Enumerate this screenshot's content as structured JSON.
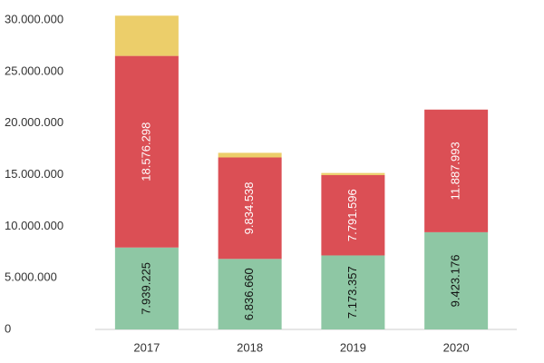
{
  "chart_data": {
    "type": "stacked_bar",
    "categories": [
      "2017",
      "2018",
      "2019",
      "2020"
    ],
    "series": [
      {
        "name": null,
        "color": "#8ec7a4",
        "label_color": "#111111",
        "values": [
          7939225,
          6836660,
          7173357,
          9423176
        ],
        "value_labels": [
          "7.939.225",
          "6.836.660",
          "7.173.357",
          "9.423.176"
        ]
      },
      {
        "name": null,
        "color": "#db4f55",
        "label_color": "#ffffff",
        "values": [
          18576298,
          9834538,
          7791596,
          11887993
        ],
        "value_labels": [
          "18.576.298",
          "9.834.538",
          "7.791.596",
          "11.887.993"
        ]
      },
      {
        "name": null,
        "color": "#ecce6a",
        "values": [
          3900000,
          450000,
          200000,
          0
        ]
      }
    ],
    "ylim": [
      0,
      30000000
    ],
    "yticks": [
      0,
      {
        "value": 5000000,
        "label": "5.000.000"
      },
      {
        "value": 10000000,
        "label": "10.000.000"
      },
      {
        "value": 15000000,
        "label": "15.000.000"
      },
      {
        "value": 20000000,
        "label": "20.000.000"
      },
      {
        "value": 25000000,
        "label": "25.000.000"
      },
      {
        "value": 30000000,
        "label": "30.000.000"
      }
    ],
    "grid": false
  }
}
